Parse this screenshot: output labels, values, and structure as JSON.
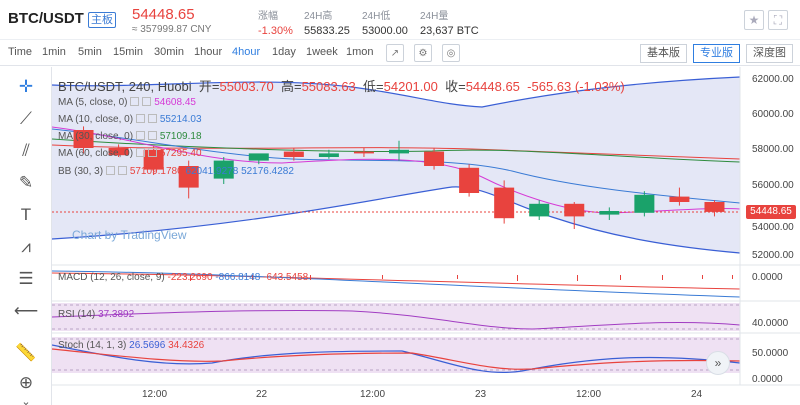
{
  "header": {
    "pair": "BTC/USDT",
    "badge": "主板",
    "price": "54448.65",
    "price_cny": "≈ 357999.87 CNY",
    "stats": [
      {
        "label": "涨幅",
        "value": "-1.30%"
      },
      {
        "label": "24H高",
        "value": "55833.25"
      },
      {
        "label": "24H低",
        "value": "53000.00"
      },
      {
        "label": "24H量",
        "value": "23,637 BTC"
      }
    ]
  },
  "toolbar": {
    "timeframes": [
      "Time",
      "1min",
      "5min",
      "15min",
      "30min",
      "1hour",
      "4hour",
      "1day",
      "1week",
      "1mon"
    ],
    "active_timeframe": "4hour",
    "views": [
      "基本版",
      "专业版",
      "深度图"
    ],
    "active_view": "专业版"
  },
  "chart": {
    "title": "BTC/USDT, 240, Huobi",
    "ohlc": {
      "open_label": "开=",
      "open": "55003.70",
      "high_label": "高=",
      "high": "55083.63",
      "low_label": "低=",
      "low": "54201.00",
      "close_label": "收=",
      "close": "54448.65",
      "change": "-565.63 (-1.03%)"
    },
    "legend": [
      {
        "label": "MA (5, close, 0)",
        "value": "54608.45",
        "color": "#d63ad6"
      },
      {
        "label": "MA (10, close, 0)",
        "value": "55214.03",
        "color": "#3a7bd5"
      },
      {
        "label": "MA (30, close, 0)",
        "value": "57109.18",
        "color": "#2e8b3e"
      },
      {
        "label": "MA (60, close, 0)",
        "value": "57295.40",
        "color": "#e8433e"
      },
      {
        "label": "BB (30, 3)",
        "values": [
          "57109.1780",
          "62041.9278",
          "52176.4282"
        ],
        "colors": [
          "#e8433e",
          "#3a7bd5",
          "#3a7bd5"
        ]
      }
    ],
    "price_axis": [
      "62000.00",
      "60000.00",
      "58000.00",
      "56000.00",
      "54000.00",
      "52000.00"
    ],
    "last_price": "54448.65",
    "watermark": "Chart by TradingView",
    "time_axis": [
      "12:00",
      "22",
      "12:00",
      "23",
      "12:00",
      "24"
    ],
    "macd": {
      "label": "MACD (12, 26, close, 9)",
      "values": [
        "-223.2690",
        "-866.8148",
        "-643.5458"
      ],
      "axis": "0.0000"
    },
    "rsi": {
      "label": "RSI (14)",
      "value": "37.3892",
      "axis": "40.0000"
    },
    "stoch": {
      "label": "Stoch (14, 1, 3)",
      "values": [
        "26.5696",
        "34.4326"
      ],
      "axis": [
        "50.0000",
        "0.0000"
      ]
    }
  },
  "chart_data": {
    "type": "candlestick",
    "candles": [
      {
        "o": 59000,
        "h": 59200,
        "c": 58000,
        "l": 57700
      },
      {
        "o": 58000,
        "h": 58200,
        "c": 57600,
        "l": 57500
      },
      {
        "o": 57900,
        "h": 58100,
        "c": 56800,
        "l": 56500
      },
      {
        "o": 57000,
        "h": 57300,
        "c": 55800,
        "l": 55200
      },
      {
        "o": 56300,
        "h": 57500,
        "c": 57300,
        "l": 56000
      },
      {
        "o": 57300,
        "h": 57600,
        "c": 57700,
        "l": 57100
      },
      {
        "o": 57800,
        "h": 58000,
        "c": 57500,
        "l": 57300
      },
      {
        "o": 57500,
        "h": 57900,
        "c": 57700,
        "l": 57400
      },
      {
        "o": 57800,
        "h": 58000,
        "c": 57700,
        "l": 57500
      },
      {
        "o": 57700,
        "h": 58400,
        "c": 57900,
        "l": 57300
      },
      {
        "o": 57800,
        "h": 58000,
        "c": 57000,
        "l": 56800
      },
      {
        "o": 56900,
        "h": 57100,
        "c": 55500,
        "l": 55300
      },
      {
        "o": 55800,
        "h": 56200,
        "c": 54100,
        "l": 53800
      },
      {
        "o": 54200,
        "h": 55100,
        "c": 54900,
        "l": 54000
      },
      {
        "o": 54900,
        "h": 55000,
        "c": 54200,
        "l": 53500
      },
      {
        "o": 54300,
        "h": 54700,
        "c": 54500,
        "l": 54000
      },
      {
        "o": 54400,
        "h": 55600,
        "c": 55400,
        "l": 54200
      },
      {
        "o": 55300,
        "h": 55800,
        "c": 55000,
        "l": 54800
      },
      {
        "o": 55000,
        "h": 55100,
        "c": 54450,
        "l": 54200
      }
    ],
    "ylim": [
      51500,
      62500
    ]
  }
}
